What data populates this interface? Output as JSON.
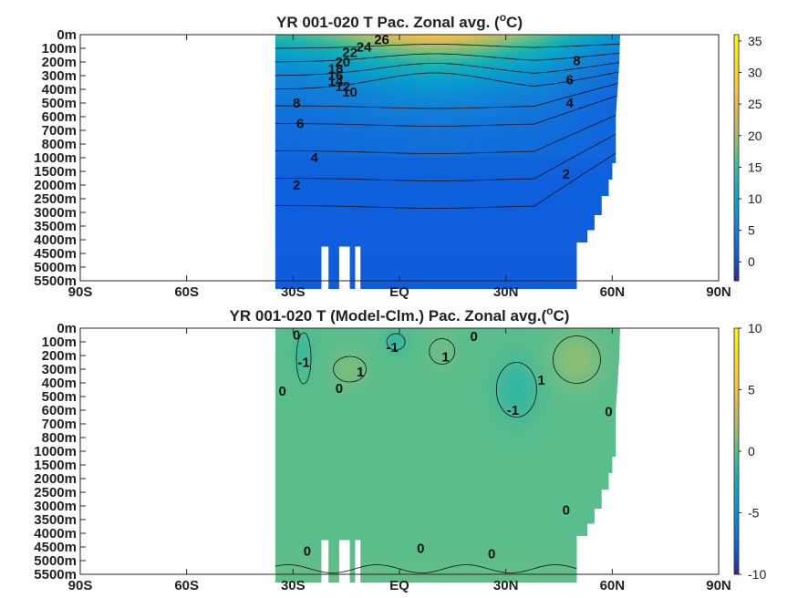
{
  "chart_data": [
    {
      "type": "heatmap",
      "title_main": "YR 001-020 T Pac. Zonal avg. (",
      "title_sup": "o",
      "title_tail": "C)",
      "x_ticks": [
        "90S",
        "60S",
        "30S",
        "EQ",
        "30N",
        "60N",
        "90N"
      ],
      "x_tick_values": [
        -90,
        -60,
        -30,
        0,
        30,
        60,
        90
      ],
      "y_ticks": [
        "0m",
        "100m",
        "200m",
        "300m",
        "400m",
        "500m",
        "600m",
        "700m",
        "800m",
        "1000m",
        "1500m",
        "2000m",
        "2500m",
        "3000m",
        "3500m",
        "4000m",
        "4500m",
        "5000m",
        "5500m"
      ],
      "colorbar": {
        "ticks": [
          "35",
          "30",
          "25",
          "20",
          "15",
          "10",
          "5",
          "0"
        ],
        "tick_values": [
          35,
          30,
          25,
          20,
          15,
          10,
          5,
          0
        ],
        "range": [
          -3,
          36
        ],
        "colormap": "parula"
      },
      "data_extent_lat": [
        -35,
        62
      ],
      "contour_labels": [
        {
          "text": "26",
          "lat": -5,
          "level": 0.35
        },
        {
          "text": "24",
          "lat": -10,
          "level": 0.9
        },
        {
          "text": "22",
          "lat": -14,
          "level": 1.3
        },
        {
          "text": "20",
          "lat": -16,
          "level": 2.0
        },
        {
          "text": "18",
          "lat": -18,
          "level": 2.5
        },
        {
          "text": "16",
          "lat": -18,
          "level": 3.0
        },
        {
          "text": "14",
          "lat": -18,
          "level": 3.4
        },
        {
          "text": "12",
          "lat": -16,
          "level": 3.8
        },
        {
          "text": "10",
          "lat": -14,
          "level": 4.2
        },
        {
          "text": "8",
          "lat": -29,
          "level": 5.0
        },
        {
          "text": "6",
          "lat": -28,
          "level": 6.5
        },
        {
          "text": "4",
          "lat": -24,
          "level": 9.0
        },
        {
          "text": "2",
          "lat": -29,
          "level": 11.0
        },
        {
          "text": "8",
          "lat": 50,
          "level": 1.9
        },
        {
          "text": "6",
          "lat": 48,
          "level": 3.3
        },
        {
          "text": "4",
          "lat": 48,
          "level": 5.0
        },
        {
          "text": "2",
          "lat": 47,
          "level": 10.2
        }
      ]
    },
    {
      "type": "heatmap",
      "title_main": "YR 001-020 T (Model-Clm.) Pac. Zonal avg.(",
      "title_sup": "o",
      "title_tail": "C)",
      "x_ticks": [
        "90S",
        "60S",
        "30S",
        "EQ",
        "30N",
        "60N",
        "90N"
      ],
      "x_tick_values": [
        -90,
        -60,
        -30,
        0,
        30,
        60,
        90
      ],
      "y_ticks": [
        "0m",
        "100m",
        "200m",
        "300m",
        "400m",
        "500m",
        "600m",
        "700m",
        "800m",
        "1000m",
        "1500m",
        "2000m",
        "2500m",
        "3000m",
        "3500m",
        "4000m",
        "4500m",
        "5000m",
        "5500m"
      ],
      "colorbar": {
        "ticks": [
          "10",
          "5",
          "0",
          "-5",
          "-10"
        ],
        "tick_values": [
          10,
          5,
          0,
          -5,
          -10
        ],
        "range": [
          -10,
          10
        ],
        "colormap": "parula"
      },
      "data_extent_lat": [
        -35,
        62
      ],
      "contour_labels": [
        {
          "text": "0",
          "lat": -29,
          "level": 0.5
        },
        {
          "text": "-1",
          "lat": -27,
          "level": 2.5
        },
        {
          "text": "0",
          "lat": -33,
          "level": 4.6
        },
        {
          "text": "1",
          "lat": -11,
          "level": 3.2
        },
        {
          "text": "0",
          "lat": -17,
          "level": 4.4
        },
        {
          "text": "-1",
          "lat": -2,
          "level": 1.4
        },
        {
          "text": "0",
          "lat": 21,
          "level": 0.6
        },
        {
          "text": "1",
          "lat": 13,
          "level": 2.1
        },
        {
          "text": "-1",
          "lat": 32,
          "level": 6.0
        },
        {
          "text": "1",
          "lat": 40,
          "level": 3.8
        },
        {
          "text": "0",
          "lat": 59,
          "level": 6.1
        },
        {
          "text": "0",
          "lat": 47,
          "level": 13.3
        },
        {
          "text": "0",
          "lat": -26,
          "level": 16.3
        },
        {
          "text": "0",
          "lat": 6,
          "level": 16.1
        },
        {
          "text": "0",
          "lat": 26,
          "level": 16.5
        }
      ]
    }
  ]
}
